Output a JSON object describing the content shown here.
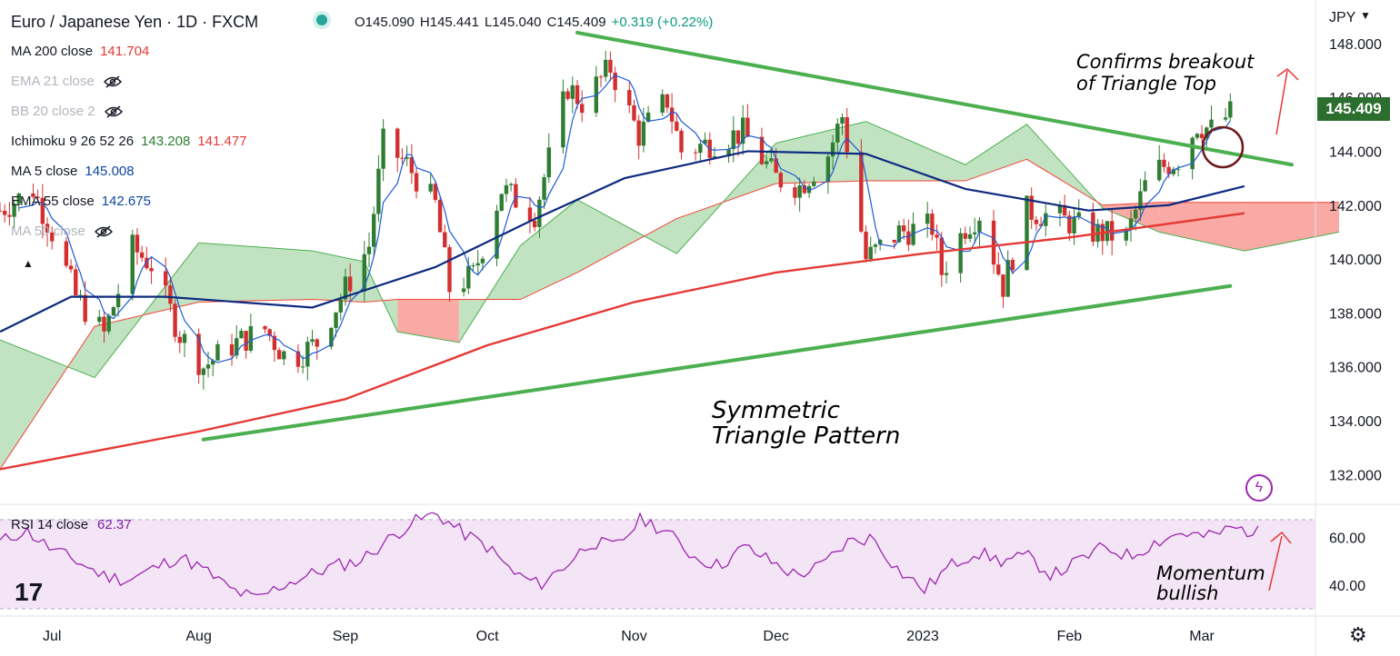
{
  "header": {
    "title": "Euro / Japanese Yen · 1D · FXCM",
    "ohlc": {
      "open": "O145.090",
      "high": "H145.441",
      "low": "L145.040",
      "close": "C145.409",
      "change": "+0.319 (+0.22%)"
    },
    "currency": "JPY"
  },
  "legend": [
    {
      "label": "MA 200 close",
      "value": "141.704",
      "color": "#e53935",
      "hidden": false
    },
    {
      "label": "EMA 21 close",
      "value": "",
      "color": "#b2b5be",
      "hidden": true
    },
    {
      "label": "BB 20 close 2",
      "value": "",
      "color": "#b2b5be",
      "hidden": true
    },
    {
      "label": "Ichimoku 9 26 52 26",
      "value": "143.208",
      "value2": "141.477",
      "color": "#2e7d32",
      "color2": "#e53935",
      "hidden": false
    },
    {
      "label": "MA 5 close",
      "value": "145.008",
      "color": "#0d47a1",
      "hidden": false
    },
    {
      "label": "EMA 55 close",
      "value": "142.675",
      "color": "#0d47a1",
      "hidden": false
    },
    {
      "label": "MA 50 close",
      "value": "",
      "color": "#b2b5be",
      "hidden": true
    }
  ],
  "annotations": {
    "breakout": [
      "Confirms breakout",
      "of Triangle Top"
    ],
    "pattern": [
      "Symmetric",
      "Triangle Pattern"
    ],
    "momentum": [
      "Momentum",
      "bullish"
    ]
  },
  "last_price": "145.409",
  "rsi": {
    "label": "RSI 14 close",
    "value": "62.37",
    "ticks": [
      "60.00",
      "40.00"
    ]
  },
  "colors": {
    "up": "#2e7d32",
    "down": "#d32f2f",
    "ma200": "#e53935",
    "ema55": "#0d2a80",
    "ma5": "#1e5bd6",
    "trend": "#4caf50",
    "rsi": "#9c27b0"
  },
  "chart_data": [
    {
      "type": "candlestick",
      "title": "Euro / Japanese Yen · 1D · FXCM",
      "y_ticks": [
        "148.000",
        "146.000",
        "144.000",
        "142.000",
        "140.000",
        "138.000",
        "136.000",
        "134.000",
        "132.000"
      ],
      "ylim": [
        131.0,
        148.6
      ],
      "x_ticks": [
        "Jul",
        "Aug",
        "Sep",
        "Oct",
        "Nov",
        "Dec",
        "2023",
        "Feb",
        "Mar"
      ],
      "x_range": [
        "2022-06-20",
        "2023-03-25"
      ],
      "close_path": [
        [
          "2022-06-20",
          141.8
        ],
        [
          "2022-06-27",
          142.6
        ],
        [
          "2022-07-01",
          141.0
        ],
        [
          "2022-07-06",
          138.6
        ],
        [
          "2022-07-12",
          137.2
        ],
        [
          "2022-07-18",
          140.4
        ],
        [
          "2022-07-22",
          139.8
        ],
        [
          "2022-07-28",
          137.2
        ],
        [
          "2022-08-02",
          136.0
        ],
        [
          "2022-08-08",
          136.8
        ],
        [
          "2022-08-15",
          137.4
        ],
        [
          "2022-08-20",
          136.2
        ],
        [
          "2022-08-26",
          136.9
        ],
        [
          "2022-09-01",
          138.9
        ],
        [
          "2022-09-06",
          140.5
        ],
        [
          "2022-09-09",
          144.3
        ],
        [
          "2022-09-14",
          143.5
        ],
        [
          "2022-09-20",
          142.0
        ],
        [
          "2022-09-23",
          138.9
        ],
        [
          "2022-09-28",
          139.4
        ],
        [
          "2022-10-04",
          142.6
        ],
        [
          "2022-10-11",
          141.7
        ],
        [
          "2022-10-18",
          146.4
        ],
        [
          "2022-10-21",
          145.8
        ],
        [
          "2022-10-27",
          147.1
        ],
        [
          "2022-11-02",
          144.6
        ],
        [
          "2022-11-08",
          145.9
        ],
        [
          "2022-11-11",
          144.0
        ],
        [
          "2022-11-17",
          144.3
        ],
        [
          "2022-11-24",
          144.7
        ],
        [
          "2022-12-01",
          143.0
        ],
        [
          "2022-12-06",
          142.7
        ],
        [
          "2022-12-12",
          143.9
        ],
        [
          "2022-12-15",
          145.3
        ],
        [
          "2022-12-20",
          140.0
        ],
        [
          "2022-12-27",
          141.0
        ],
        [
          "2023-01-03",
          141.2
        ],
        [
          "2023-01-05",
          139.5
        ],
        [
          "2023-01-10",
          141.2
        ],
        [
          "2023-01-13",
          141.7
        ],
        [
          "2023-01-18",
          139.0
        ],
        [
          "2023-01-23",
          141.8
        ],
        [
          "2023-01-30",
          141.5
        ],
        [
          "2023-02-06",
          141.0
        ],
        [
          "2023-02-13",
          140.8
        ],
        [
          "2023-02-18",
          143.2
        ],
        [
          "2023-02-24",
          143.7
        ],
        [
          "2023-02-28",
          145.0
        ],
        [
          "2023-03-03",
          144.8
        ],
        [
          "2023-03-07",
          145.4
        ]
      ],
      "ma200_path": [
        [
          "2022-06-20",
          132.2
        ],
        [
          "2022-08-01",
          133.6
        ],
        [
          "2022-09-01",
          134.8
        ],
        [
          "2022-10-01",
          136.8
        ],
        [
          "2022-11-01",
          138.4
        ],
        [
          "2022-12-01",
          139.5
        ],
        [
          "2023-01-01",
          140.2
        ],
        [
          "2023-02-01",
          140.8
        ],
        [
          "2023-03-10",
          141.7
        ]
      ],
      "ema55_path": [
        [
          "2022-06-20",
          137.3
        ],
        [
          "2022-07-05",
          138.6
        ],
        [
          "2022-07-25",
          138.6
        ],
        [
          "2022-08-25",
          138.2
        ],
        [
          "2022-09-20",
          139.7
        ],
        [
          "2022-10-10",
          141.4
        ],
        [
          "2022-10-30",
          143.0
        ],
        [
          "2022-11-25",
          144.0
        ],
        [
          "2022-12-20",
          143.9
        ],
        [
          "2023-01-10",
          142.6
        ],
        [
          "2023-02-05",
          141.8
        ],
        [
          "2023-02-22",
          142.0
        ],
        [
          "2023-03-10",
          142.7
        ]
      ],
      "ichimoku_cloud": {
        "x": [
          "2022-06-20",
          "2022-07-10",
          "2022-08-01",
          "2022-08-25",
          "2022-09-05",
          "2022-09-12",
          "2022-09-25",
          "2022-10-08",
          "2022-10-20",
          "2022-11-10",
          "2022-12-01",
          "2022-12-20",
          "2023-01-10",
          "2023-01-23",
          "2023-02-08",
          "2023-02-20",
          "2023-03-10",
          "2023-03-30"
        ],
        "span_a": [
          137.0,
          135.6,
          140.6,
          140.3,
          139.9,
          137.3,
          136.9,
          140.5,
          142.2,
          140.2,
          144.3,
          145.1,
          143.5,
          145.0,
          141.9,
          141.0,
          140.3,
          141.0
        ],
        "span_b": [
          132.2,
          137.5,
          138.4,
          138.5,
          138.4,
          138.5,
          138.5,
          138.5,
          139.5,
          141.5,
          142.8,
          142.9,
          142.9,
          143.7,
          142.0,
          142.1,
          142.1,
          142.1
        ]
      },
      "trendlines": [
        {
          "from": [
            "2022-08-02",
            133.3
          ],
          "to": [
            "2023-03-07",
            139.0
          ]
        },
        {
          "from": [
            "2022-10-20",
            148.4
          ],
          "to": [
            "2023-03-20",
            143.5
          ]
        }
      ]
    },
    {
      "type": "line",
      "title": "RSI 14 close",
      "ylim": [
        30,
        72
      ],
      "y_ticks": [
        "60.00",
        "40.00"
      ],
      "values": [
        58,
        63,
        55,
        50,
        44,
        42,
        47,
        52,
        46,
        38,
        34,
        40,
        44,
        48,
        50,
        58,
        66,
        70,
        62,
        56,
        45,
        40,
        48,
        58,
        56,
        68,
        62,
        52,
        48,
        56,
        50,
        44,
        48,
        58,
        60,
        46,
        38,
        48,
        54,
        50,
        52,
        44,
        50,
        56,
        52,
        58,
        62,
        60,
        64,
        62
      ]
    }
  ]
}
